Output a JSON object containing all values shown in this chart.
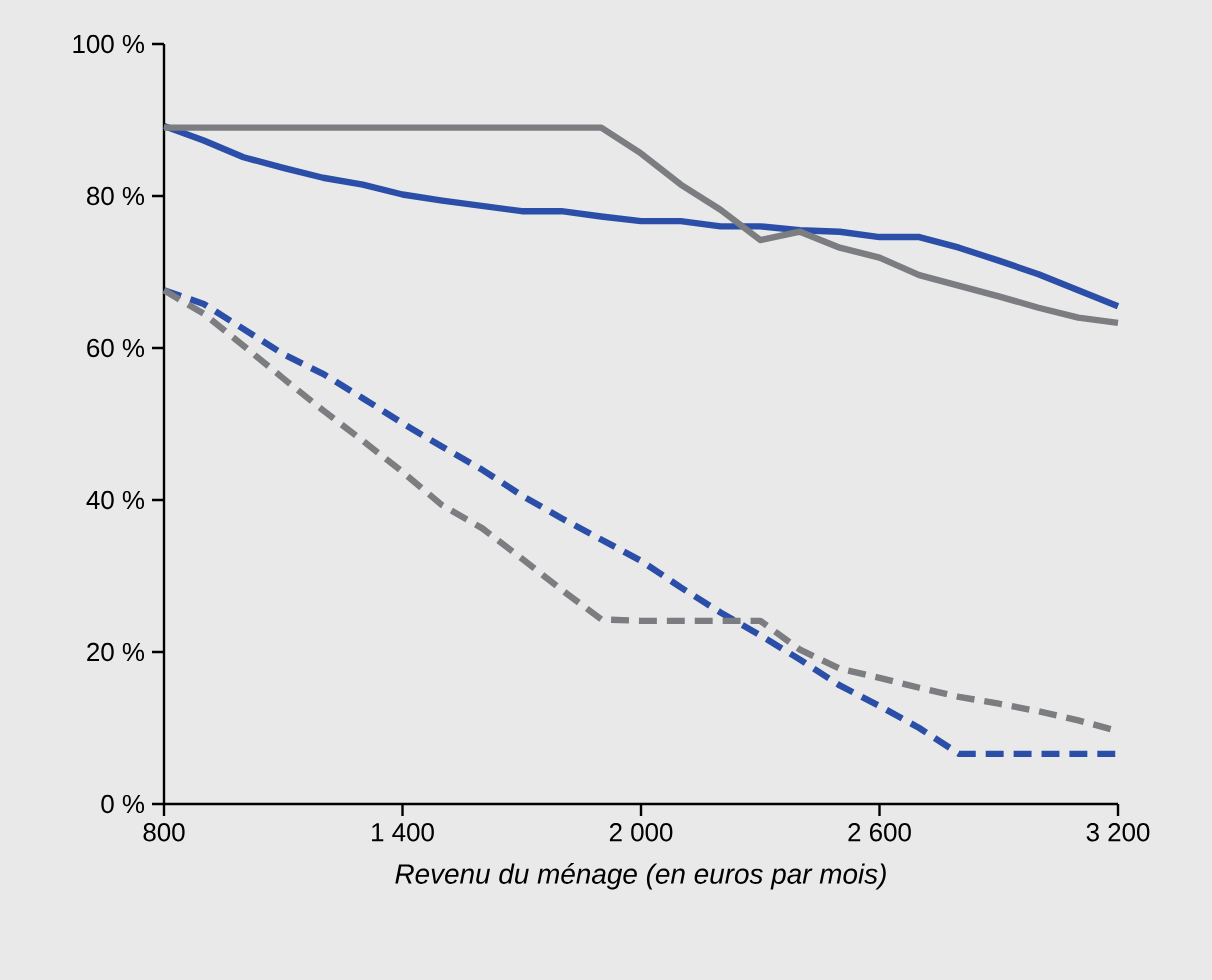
{
  "chart_data": {
    "type": "line",
    "xlabel": "*Revenu du ménage (en euros par mois)*",
    "x": [
      800,
      900,
      1000,
      1100,
      1200,
      1300,
      1400,
      1500,
      1600,
      1700,
      1800,
      1900,
      2000,
      2100,
      2200,
      2300,
      2400,
      2500,
      2600,
      2700,
      2800,
      2900,
      3000,
      3100,
      3200
    ],
    "series": [
      {
        "color": "#2b4fa8",
        "line_style": "solid",
        "values": [
          89.2,
          87.3,
          85.1,
          83.7,
          82.4,
          81.5,
          80.2,
          79.4,
          78.7,
          78.0,
          78.0,
          77.3,
          76.7,
          76.7,
          76.0,
          76.0,
          75.5,
          75.3,
          74.6,
          74.6,
          73.2,
          71.5,
          69.7,
          67.6,
          65.5
        ]
      },
      {
        "color": "#7b7d80",
        "line_style": "solid",
        "values": [
          89,
          89,
          89,
          89,
          89,
          89,
          89,
          89,
          89,
          89,
          89,
          89,
          85.6,
          81.5,
          78.2,
          74.2,
          75.3,
          73.2,
          71.9,
          69.6,
          68.2,
          66.8,
          65.3,
          64.0,
          63.3
        ]
      },
      {
        "color": "#2b4fa8",
        "line_style": "dashed",
        "values": [
          67.6,
          65.8,
          62.5,
          59.2,
          56.6,
          53.4,
          50.1,
          47.0,
          44.0,
          40.6,
          37.6,
          34.8,
          32.0,
          28.5,
          25.2,
          22.2,
          19.0,
          15.6,
          12.9,
          10.0,
          6.6,
          6.6,
          6.6,
          6.6,
          6.6
        ]
      },
      {
        "color": "#7b7d80",
        "line_style": "dashed",
        "values": [
          67.6,
          64.5,
          60.3,
          56.0,
          51.8,
          47.8,
          43.7,
          39.3,
          36.3,
          32.3,
          28.2,
          24.3,
          24.1,
          24.1,
          24.1,
          24.1,
          20.3,
          17.8,
          16.6,
          15.3,
          14.1,
          13.2,
          12.2,
          11.0,
          9.6
        ]
      }
    ],
    "xlim": [
      800,
      3200
    ],
    "ylim": [
      0,
      100
    ],
    "xticks": [
      800,
      {
        "value": 1400,
        "label": "1 400"
      },
      {
        "value": 2000,
        "label": "2 000"
      },
      {
        "value": 2600,
        "label": "2 600"
      },
      {
        "value": 3200,
        "label": "3 200"
      }
    ],
    "yticks": [
      {
        "value": 0,
        "label": "0 %"
      },
      {
        "value": 20,
        "label": "20 %"
      },
      {
        "value": 40,
        "label": "40 %"
      },
      {
        "value": 60,
        "label": "60 %"
      },
      {
        "value": 80,
        "label": "80 %"
      },
      {
        "value": 100,
        "label": "100 %"
      }
    ],
    "marker": "none"
  }
}
